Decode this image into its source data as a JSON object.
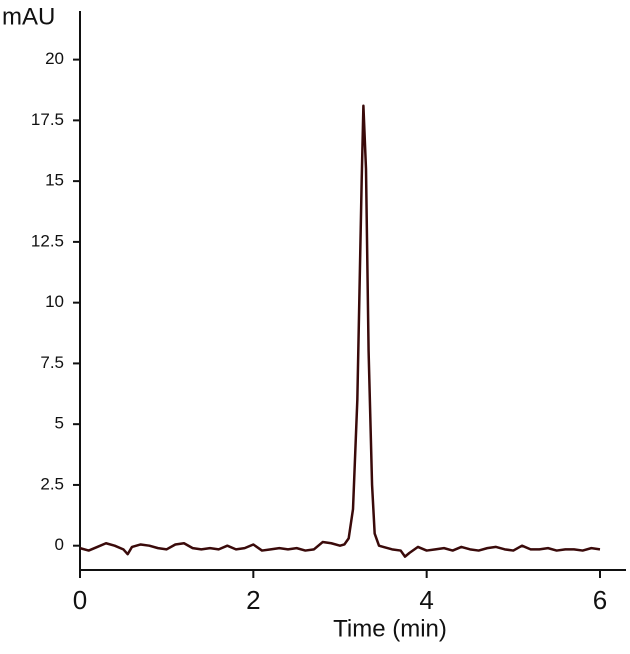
{
  "chart_data": {
    "type": "line",
    "y_label": "mAU",
    "x_label": "Time (min)",
    "x": [
      0,
      0.1,
      0.2,
      0.3,
      0.4,
      0.5,
      0.55,
      0.6,
      0.7,
      0.8,
      0.9,
      1.0,
      1.1,
      1.2,
      1.3,
      1.4,
      1.5,
      1.6,
      1.7,
      1.8,
      1.9,
      2.0,
      2.1,
      2.2,
      2.3,
      2.4,
      2.5,
      2.6,
      2.7,
      2.8,
      2.9,
      3.0,
      3.05,
      3.1,
      3.15,
      3.2,
      3.25,
      3.27,
      3.3,
      3.33,
      3.37,
      3.4,
      3.45,
      3.5,
      3.6,
      3.7,
      3.75,
      3.8,
      3.9,
      4.0,
      4.1,
      4.2,
      4.3,
      4.4,
      4.5,
      4.6,
      4.7,
      4.8,
      4.9,
      5.0,
      5.1,
      5.2,
      5.3,
      5.4,
      5.5,
      5.6,
      5.7,
      5.8,
      5.9,
      6.0
    ],
    "series": [
      {
        "color": "#3a0a0a",
        "values": [
          -0.1,
          -0.2,
          -0.05,
          0.1,
          0.0,
          -0.15,
          -0.35,
          -0.05,
          0.05,
          0.0,
          -0.1,
          -0.15,
          0.05,
          0.1,
          -0.1,
          -0.15,
          -0.1,
          -0.15,
          0.0,
          -0.15,
          -0.1,
          0.05,
          -0.2,
          -0.15,
          -0.1,
          -0.15,
          -0.1,
          -0.2,
          -0.15,
          0.15,
          0.1,
          0.0,
          0.05,
          0.3,
          1.5,
          6.0,
          15.0,
          18.1,
          15.5,
          8.0,
          2.5,
          0.5,
          0.0,
          -0.05,
          -0.15,
          -0.2,
          -0.45,
          -0.3,
          -0.05,
          -0.2,
          -0.15,
          -0.1,
          -0.2,
          -0.05,
          -0.15,
          -0.2,
          -0.1,
          -0.05,
          -0.15,
          -0.2,
          0.0,
          -0.15,
          -0.15,
          -0.1,
          -0.2,
          -0.15,
          -0.15,
          -0.2,
          -0.1,
          -0.15
        ]
      }
    ],
    "xlim": [
      0,
      6.3
    ],
    "ylim": [
      -1,
      22
    ],
    "xticks": [
      0,
      2,
      4,
      6
    ],
    "yticks": [
      0,
      2.5,
      5,
      7.5,
      10,
      12.5,
      15,
      17.5,
      20
    ],
    "grid": false
  }
}
